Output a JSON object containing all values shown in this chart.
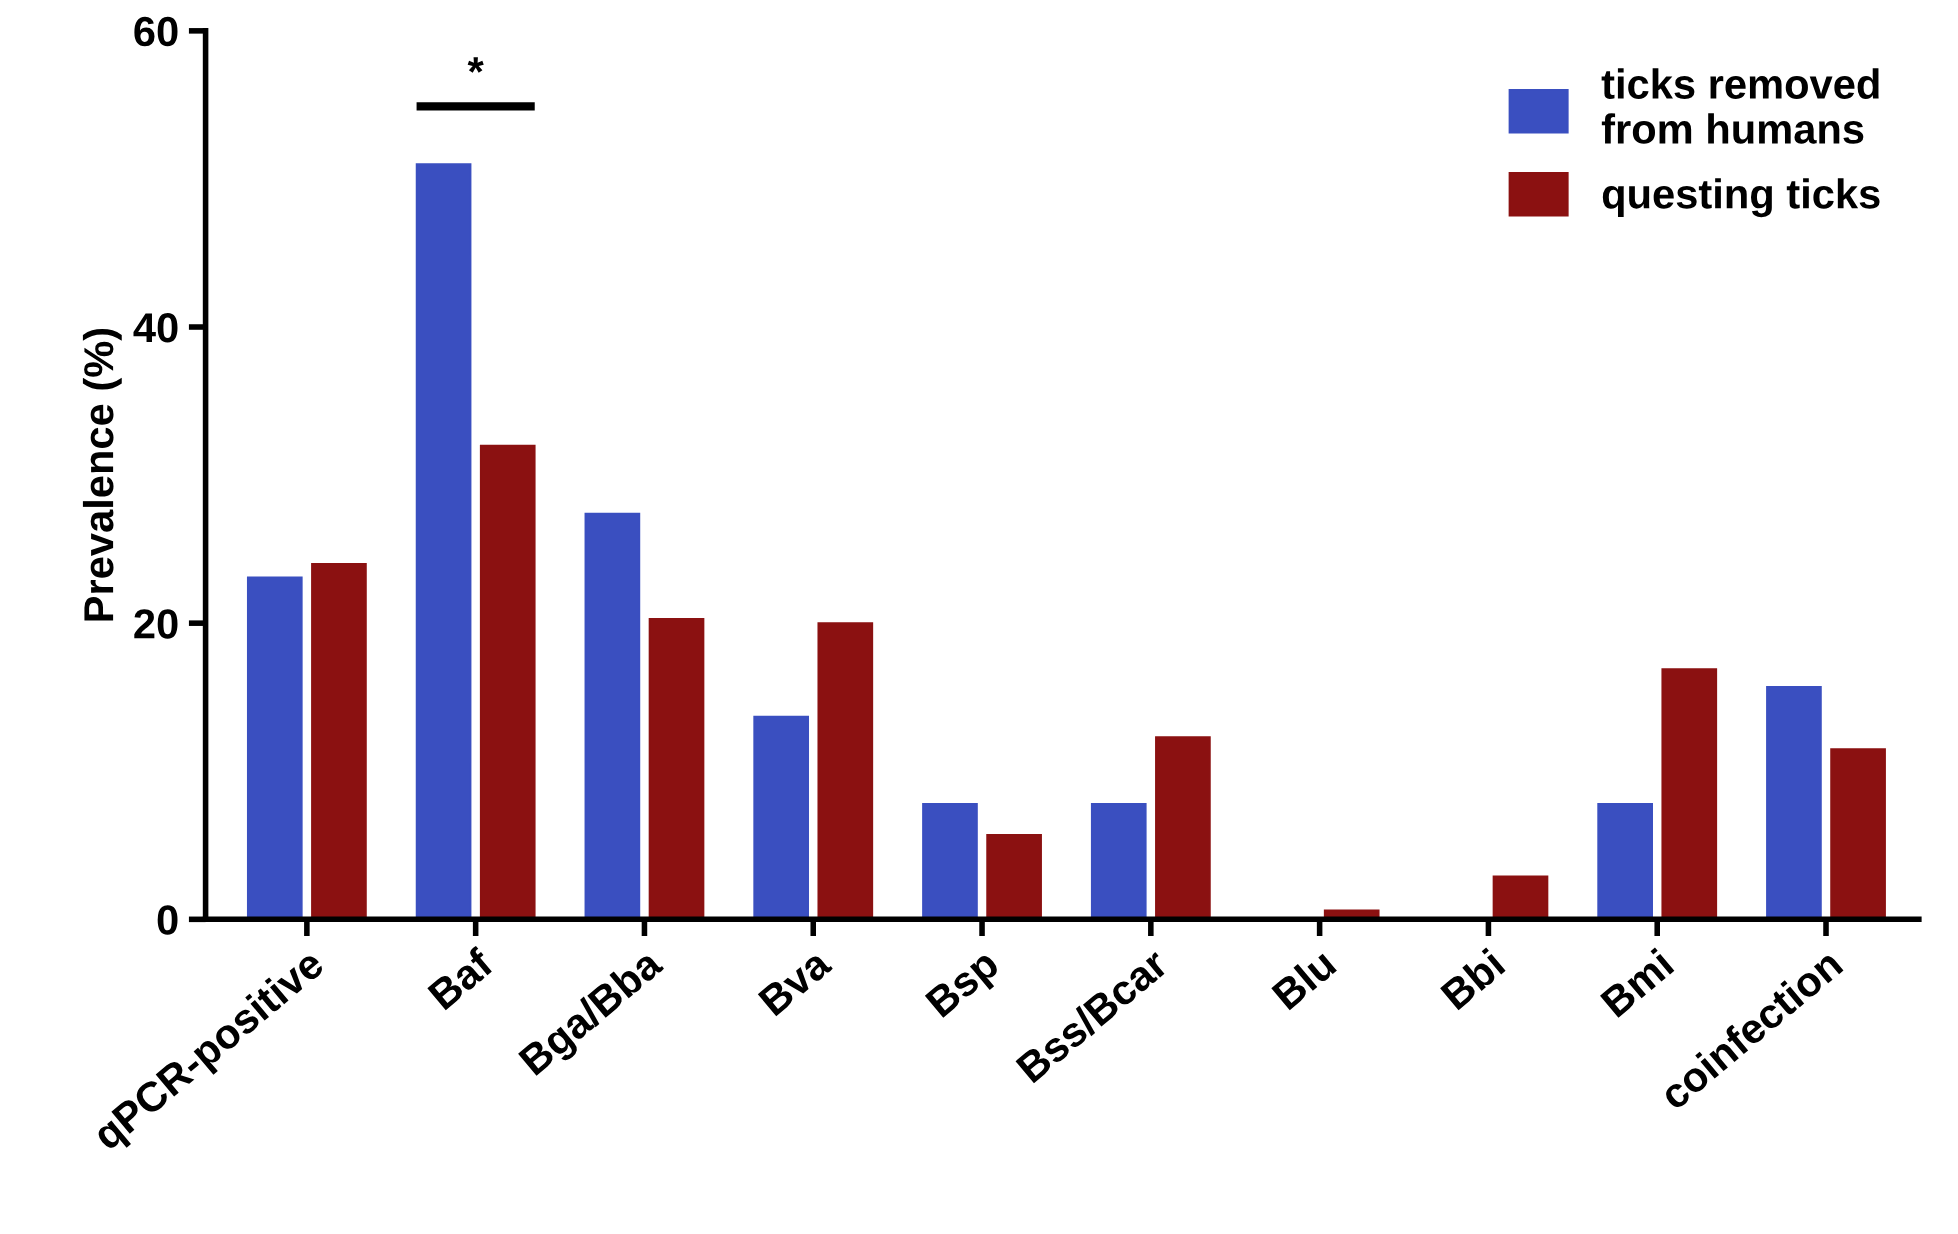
{
  "chart_data": {
    "type": "bar",
    "ylabel": "Prevalence (%)",
    "categories": [
      "qPCR-positive",
      "Baf",
      "Bga/Bba",
      "Bva",
      "Bsp",
      "Bss/Bcar",
      "Blu",
      "Bbi",
      "Bmi",
      "coinfection"
    ],
    "series": [
      {
        "name": "ticks removed\nfrom humans",
        "color": "#3a4fc0",
        "values": [
          23.1,
          51.0,
          27.4,
          13.7,
          7.8,
          7.8,
          0,
          0,
          7.8,
          15.7
        ]
      },
      {
        "name": "questing ticks",
        "color": "#8b1111",
        "values": [
          24.0,
          32.0,
          20.3,
          20.0,
          5.7,
          12.3,
          0.6,
          2.9,
          16.9,
          11.5
        ]
      }
    ],
    "ylim": [
      0,
      60
    ],
    "yticks": [
      0,
      20,
      40,
      60
    ],
    "grid": false,
    "legend": "top right",
    "annotations": [
      "*"
    ]
  }
}
